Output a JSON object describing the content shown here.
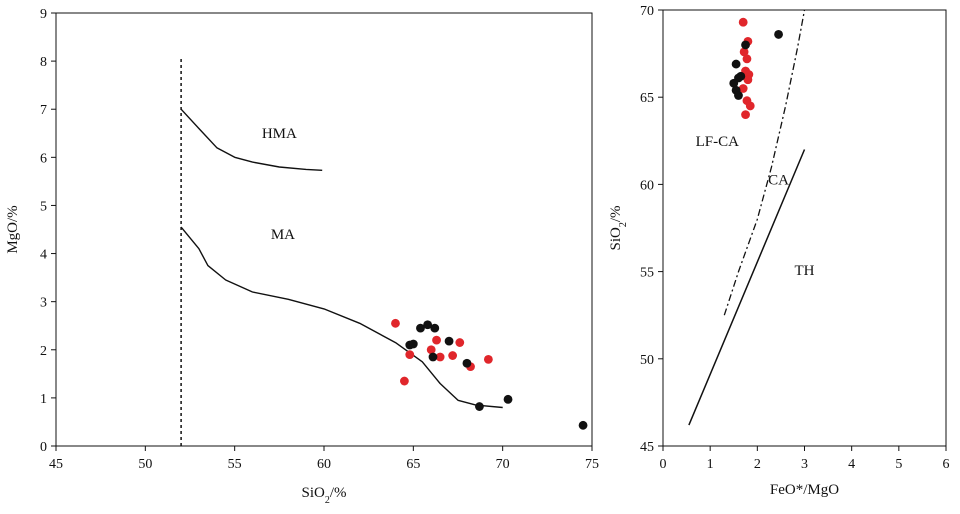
{
  "chart_data": [
    {
      "type": "scatter",
      "id": "left",
      "xlabel": "SiO",
      "xlabel_sub": "2",
      "xlabel_suffix": "/%",
      "ylabel": "MgO/%",
      "xlim": [
        45,
        75
      ],
      "ylim": [
        0,
        9
      ],
      "xticks": [
        45,
        50,
        55,
        60,
        65,
        70,
        75
      ],
      "yticks": [
        0,
        1,
        2,
        3,
        4,
        5,
        6,
        7,
        8,
        9
      ],
      "field_labels": [
        {
          "text": "HMA",
          "x": 57.5,
          "y": 6.4
        },
        {
          "text": "MA",
          "x": 57.7,
          "y": 4.3
        }
      ],
      "dashed_line": {
        "x": [
          52,
          52
        ],
        "y": [
          0,
          8.1
        ]
      },
      "curves": [
        {
          "name": "HMA boundary",
          "x": [
            52,
            53,
            54,
            55,
            56,
            57.5,
            59,
            59.9
          ],
          "y": [
            7.0,
            6.6,
            6.2,
            6.0,
            5.9,
            5.8,
            5.75,
            5.73
          ]
        },
        {
          "name": "MA boundary",
          "x": [
            52,
            53,
            53.5,
            54.5,
            56,
            58,
            60,
            62,
            64,
            65.5,
            66.5,
            67.5,
            68.5,
            70
          ],
          "y": [
            4.55,
            4.1,
            3.75,
            3.45,
            3.2,
            3.05,
            2.85,
            2.55,
            2.15,
            1.75,
            1.3,
            0.95,
            0.85,
            0.8
          ]
        }
      ],
      "series": [
        {
          "name": "red",
          "color": "#e0262b",
          "points": [
            [
              64.0,
              2.55
            ],
            [
              64.5,
              1.35
            ],
            [
              64.8,
              1.9
            ],
            [
              66.0,
              2.0
            ],
            [
              66.3,
              2.2
            ],
            [
              66.5,
              1.85
            ],
            [
              67.2,
              1.88
            ],
            [
              67.6,
              2.15
            ],
            [
              68.2,
              1.65
            ],
            [
              69.2,
              1.8
            ]
          ]
        },
        {
          "name": "black",
          "color": "#111111",
          "points": [
            [
              64.8,
              2.1
            ],
            [
              65.0,
              2.12
            ],
            [
              65.4,
              2.45
            ],
            [
              65.8,
              2.52
            ],
            [
              66.2,
              2.45
            ],
            [
              66.1,
              1.85
            ],
            [
              67.0,
              2.18
            ],
            [
              68.0,
              1.72
            ],
            [
              68.7,
              0.82
            ],
            [
              70.3,
              0.97
            ],
            [
              74.5,
              0.43
            ]
          ]
        }
      ]
    },
    {
      "type": "scatter",
      "id": "right",
      "xlabel": "FeO*/MgO",
      "ylabel": "SiO",
      "ylabel_sub": "2",
      "ylabel_suffix": "/%",
      "xlim": [
        0,
        6
      ],
      "ylim": [
        45,
        70
      ],
      "xticks": [
        0,
        1,
        2,
        3,
        4,
        5,
        6
      ],
      "yticks": [
        45,
        50,
        55,
        60,
        65,
        70
      ],
      "field_labels": [
        {
          "text": "LF-CA",
          "x": 1.15,
          "y": 62.2
        },
        {
          "text": "CA",
          "x": 2.45,
          "y": 60.0
        },
        {
          "text": "TH",
          "x": 3.0,
          "y": 54.8
        }
      ],
      "dashdot_line": {
        "x": [
          1.3,
          1.6,
          2.0,
          2.3,
          2.6,
          2.85,
          3.0
        ],
        "y": [
          52.5,
          55.0,
          58.0,
          61.0,
          64.5,
          67.8,
          70.0
        ]
      },
      "solid_line": {
        "x": [
          0.55,
          3.0
        ],
        "y": [
          46.2,
          62.0
        ]
      },
      "series": [
        {
          "name": "red",
          "color": "#e0262b",
          "points": [
            [
              1.7,
              69.3
            ],
            [
              1.8,
              68.2
            ],
            [
              1.72,
              67.6
            ],
            [
              1.78,
              67.2
            ],
            [
              1.75,
              66.5
            ],
            [
              1.82,
              66.3
            ],
            [
              1.8,
              66.0
            ],
            [
              1.7,
              65.5
            ],
            [
              1.78,
              64.8
            ],
            [
              1.85,
              64.5
            ],
            [
              1.75,
              64.0
            ]
          ]
        },
        {
          "name": "black",
          "color": "#111111",
          "points": [
            [
              2.45,
              68.6
            ],
            [
              1.75,
              68.0
            ],
            [
              1.55,
              66.9
            ],
            [
              1.65,
              66.2
            ],
            [
              1.6,
              66.1
            ],
            [
              1.5,
              65.8
            ],
            [
              1.55,
              65.4
            ],
            [
              1.6,
              65.1
            ]
          ]
        }
      ]
    }
  ]
}
